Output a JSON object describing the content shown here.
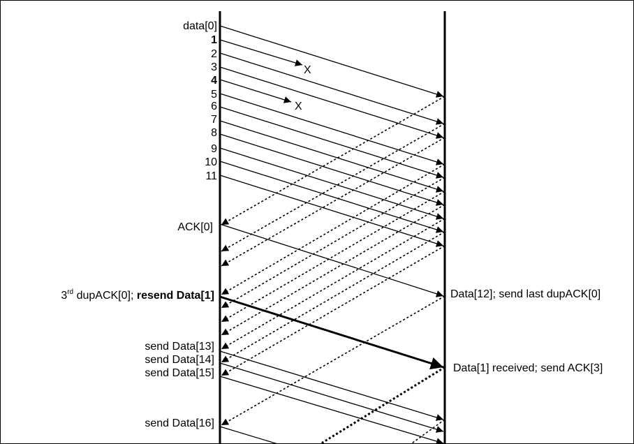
{
  "diagram": {
    "sender_labels": {
      "d0": "data[0]",
      "d1": "1",
      "d2": "2",
      "d3": "3",
      "d4": "4",
      "d5": "5",
      "d6": "6",
      "d7": "7",
      "d8": "8",
      "d9": "9",
      "d10": "10",
      "d11": "11",
      "ack0": "ACK[0]",
      "dup_prefix": "3",
      "dup_sup": "rd",
      "dup_mid": " dupACK[0]; ",
      "dup_bold": "resend Data[1]",
      "s13": "send Data[13]",
      "s14": "send Data[14]",
      "s15": "send Data[15]",
      "s16": "send Data[16]"
    },
    "receiver_labels": {
      "r12": "Data[12]; send last dupACK[0]",
      "r1": "Data[1] received; send ACK[3]"
    },
    "loss_marks": [
      "X",
      "X"
    ]
  }
}
